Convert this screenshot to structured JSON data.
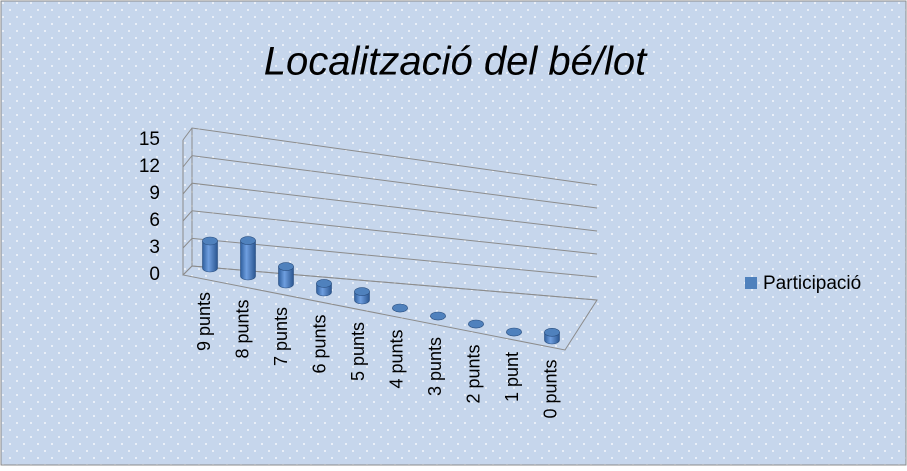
{
  "chart_data": {
    "type": "bar",
    "title": "Localització del bé/lot",
    "categories": [
      "9 punts",
      "8 punts",
      "7 punts",
      "6 punts",
      "5 punts",
      "4 punts",
      "3 punts",
      "2 punts",
      "1 punt",
      "0 punts"
    ],
    "series": [
      {
        "name": "Participació",
        "color": "#4f81bd",
        "values": [
          3,
          4,
          2,
          1,
          1,
          0,
          0,
          0,
          0,
          1
        ]
      }
    ],
    "ylim": [
      0,
      15
    ],
    "yticks": [
      0,
      3,
      6,
      9,
      12,
      15
    ],
    "grid": true,
    "legend": "right"
  }
}
